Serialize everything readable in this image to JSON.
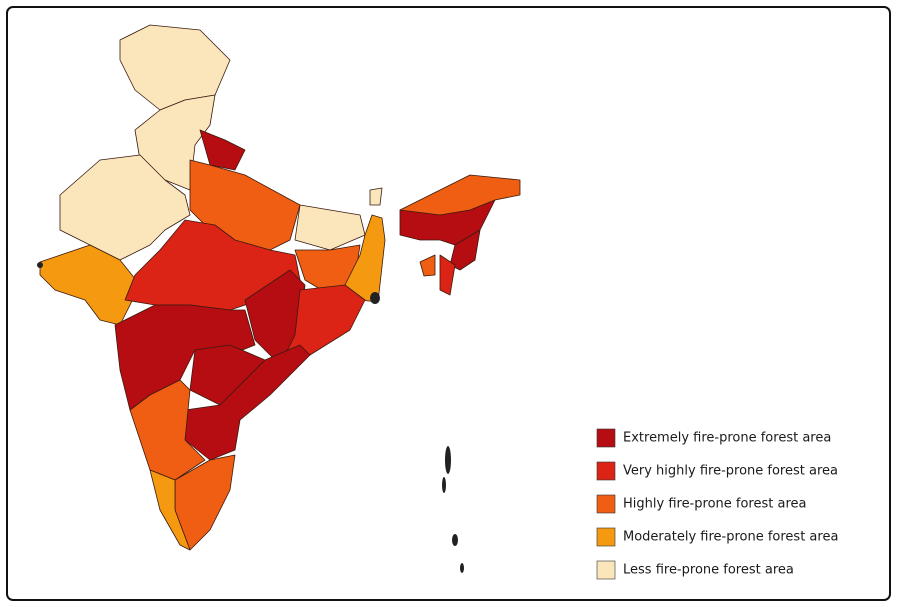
{
  "legend": {
    "items": [
      {
        "label": "Extremely fire-prone forest area",
        "color": "#b50d12"
      },
      {
        "label": "Very highly fire-prone forest area",
        "color": "#dc2416"
      },
      {
        "label": "Highly fire-prone forest area",
        "color": "#ef5e12"
      },
      {
        "label": "Moderately fire-prone forest area",
        "color": "#f59a10"
      },
      {
        "label": "Less fire-prone forest area",
        "color": "#fbe5bb"
      }
    ]
  }
}
